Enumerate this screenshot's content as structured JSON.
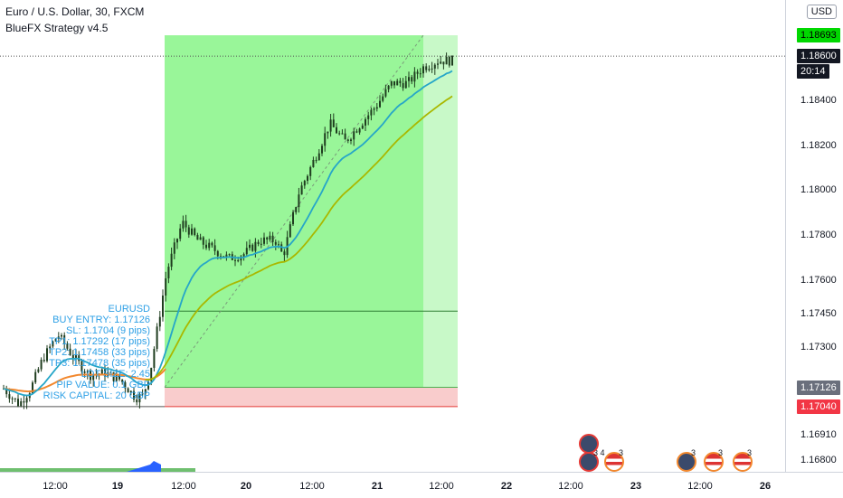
{
  "header": {
    "symbol_title": "Euro / U.S. Dollar, 30, FXCM",
    "indicator_title": "BlueFX Strategy v4.5"
  },
  "price_axis": {
    "currency_button": "USD",
    "ticks": [
      "1.18600",
      "1.18400",
      "1.18200",
      "1.18000",
      "1.17800",
      "1.17600",
      "1.17450",
      "1.17300",
      "1.16910",
      "1.16800"
    ],
    "tags": {
      "take_profit": "1.18693",
      "current_price": "1.18600",
      "countdown": "20:14",
      "entry": "1.17126",
      "stop_loss": "1.17040"
    }
  },
  "time_axis": {
    "labels": [
      "12:00",
      "19",
      "12:00",
      "20",
      "12:00",
      "21",
      "12:00",
      "22",
      "12:00",
      "23",
      "12:00",
      "26"
    ],
    "bold": [
      false,
      true,
      false,
      true,
      false,
      true,
      false,
      true,
      false,
      true,
      false,
      true
    ]
  },
  "trade_panel": {
    "lines": [
      "EURUSD",
      "BUY ENTRY: 1.17126",
      "SL: 1.1704 (9 pips)",
      "TP1: 1.17292 (17 pips)",
      "TP2: 1.17458 (33 pips)",
      "TP3: 1.17478 (35 pips)",
      "LOT SIZE: 2.45",
      "PIP VALUE: 0.1 GBP",
      "RISK CAPITAL: 20 GBP"
    ]
  },
  "events": {
    "counts": [
      "3 4",
      "3",
      "3",
      "3",
      "3"
    ]
  },
  "colors": {
    "profit_zone": "#99f699",
    "profit_zone_light": "#c8f9c8",
    "loss_zone": "#f9cccc",
    "ema_fast": "#26a6c8",
    "ema_slow": "#a9b800",
    "ema_orange": "#f2882e",
    "candle": "#1f3d1f",
    "overlay_text": "#2ea0e6",
    "price_tag_green": "#00d800",
    "price_tag_dark": "#131722",
    "price_tag_grey": "#6a6f7c",
    "price_tag_red": "#f23645"
  },
  "chart_data": {
    "type": "candlestick",
    "symbol": "EURUSD",
    "timeframe": "30",
    "ylim": [
      1.1675,
      1.1885
    ],
    "close_path": [
      [
        0,
        1.1712
      ],
      [
        0.04,
        1.1705
      ],
      [
        0.07,
        1.1712
      ],
      [
        0.1,
        1.1725
      ],
      [
        0.14,
        1.1736
      ],
      [
        0.18,
        1.1726
      ],
      [
        0.22,
        1.1718
      ],
      [
        0.26,
        1.1719
      ],
      [
        0.3,
        1.1716
      ],
      [
        0.34,
        1.1708
      ],
      [
        0.36,
        1.1709
      ],
      [
        0.38,
        1.1722
      ],
      [
        0.42,
        1.1764
      ],
      [
        0.46,
        1.1786
      ],
      [
        0.5,
        1.1778
      ],
      [
        0.54,
        1.1774
      ],
      [
        0.58,
        1.177
      ],
      [
        0.62,
        1.1772
      ],
      [
        0.66,
        1.1778
      ],
      [
        0.7,
        1.1778
      ],
      [
        0.72,
        1.1771
      ],
      [
        0.76,
        1.1799
      ],
      [
        0.8,
        1.1814
      ],
      [
        0.84,
        1.183
      ],
      [
        0.88,
        1.1822
      ],
      [
        0.92,
        1.183
      ],
      [
        0.96,
        1.1838
      ],
      [
        1.0,
        1.1848
      ],
      [
        1.04,
        1.1848
      ],
      [
        1.08,
        1.1855
      ],
      [
        1.12,
        1.1858
      ],
      [
        1.16,
        1.1858
      ]
    ]
  }
}
